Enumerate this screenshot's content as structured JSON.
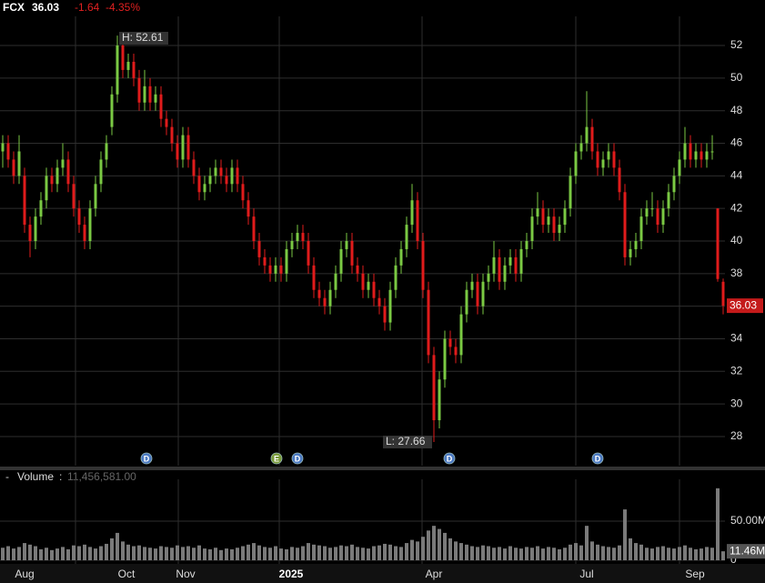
{
  "chart_data": {
    "type": "candlestick",
    "header": {
      "symbol": "FCX",
      "last": "36.03",
      "change": "-1.64",
      "change_pct": "-4.35%"
    },
    "annotations": {
      "high": "H: 52.61",
      "low": "L: 27.66",
      "last_tag": "36.03"
    },
    "events": [
      "D",
      "E",
      "D",
      "D",
      "D"
    ],
    "x_labels": [
      "Aug",
      "Oct",
      "Nov",
      "2025",
      "Apr",
      "Jul",
      "Sep"
    ],
    "up_color": "#7ac943",
    "down_color": "#e01b1b",
    "ylim": [
      26.21,
      53.79
    ],
    "yticks": [
      28,
      30,
      32,
      34,
      36,
      38,
      40,
      42,
      44,
      46,
      48,
      50,
      52
    ],
    "grid": true,
    "candles": [
      [
        45.5,
        46.5,
        44.5,
        46
      ],
      [
        46,
        46.5,
        44.5,
        45
      ],
      [
        45,
        45.5,
        43.5,
        44
      ],
      [
        44,
        46.5,
        43.5,
        45.5
      ],
      [
        44,
        44.5,
        40.5,
        41
      ],
      [
        41,
        41.5,
        39,
        40
      ],
      [
        40,
        42,
        39.5,
        41.5
      ],
      [
        41.5,
        43,
        41,
        42.5
      ],
      [
        42.5,
        44.5,
        42,
        44
      ],
      [
        44,
        44.5,
        43,
        43.5
      ],
      [
        43.5,
        45,
        43,
        44.5
      ],
      [
        44.5,
        46,
        44,
        45
      ],
      [
        45,
        45.5,
        43,
        43.5
      ],
      [
        43.5,
        44,
        41.5,
        42
      ],
      [
        42,
        42.5,
        40.5,
        41
      ],
      [
        41,
        41.5,
        39.5,
        40
      ],
      [
        40,
        42.5,
        39.5,
        42
      ],
      [
        42,
        44,
        41.5,
        43.5
      ],
      [
        43.5,
        45.5,
        43,
        45
      ],
      [
        45,
        46.5,
        44.5,
        46
      ],
      [
        47,
        49.5,
        46.5,
        49
      ],
      [
        49,
        52.61,
        48.5,
        52
      ],
      [
        52,
        52.5,
        50,
        50.5
      ],
      [
        50.5,
        51.5,
        50,
        51
      ],
      [
        51,
        51.5,
        49.5,
        50
      ],
      [
        50,
        50.5,
        48,
        48.5
      ],
      [
        48.5,
        50.5,
        48,
        49.5
      ],
      [
        49.5,
        50,
        48,
        48.5
      ],
      [
        48.5,
        49.5,
        48,
        49
      ],
      [
        49,
        49.5,
        47,
        47.5
      ],
      [
        47.5,
        48,
        46.5,
        47
      ],
      [
        47,
        47.5,
        45.5,
        46
      ],
      [
        46,
        46.5,
        44.5,
        45
      ],
      [
        45,
        47,
        44.5,
        46.5
      ],
      [
        46.5,
        47,
        44.5,
        45
      ],
      [
        45,
        45.5,
        43.5,
        44
      ],
      [
        44,
        44.5,
        42.5,
        43
      ],
      [
        43,
        44,
        42.5,
        43.5
      ],
      [
        43.5,
        44.5,
        43,
        44
      ],
      [
        44,
        45,
        43.5,
        44.5
      ],
      [
        44.5,
        45,
        43.5,
        44
      ],
      [
        44,
        44.5,
        43,
        43.5
      ],
      [
        43.5,
        45,
        43,
        44.5
      ],
      [
        44.5,
        45,
        43,
        43.5
      ],
      [
        43.5,
        44,
        42,
        42.5
      ],
      [
        42.5,
        43,
        41,
        41.5
      ],
      [
        41.5,
        42,
        39.5,
        40
      ],
      [
        40,
        40.5,
        38.5,
        39
      ],
      [
        39,
        39.5,
        38,
        38.5
      ],
      [
        38.5,
        39,
        37.5,
        38
      ],
      [
        38,
        39,
        37.5,
        38.5
      ],
      [
        38.5,
        39,
        37.5,
        38
      ],
      [
        38,
        40,
        37.5,
        39.5
      ],
      [
        39.5,
        40.5,
        39,
        40
      ],
      [
        40,
        41,
        39.5,
        40.5
      ],
      [
        40.5,
        41,
        39.5,
        40
      ],
      [
        40,
        40.5,
        38,
        38.5
      ],
      [
        38.5,
        39,
        36.5,
        37
      ],
      [
        37,
        37.5,
        36,
        36.5
      ],
      [
        36.5,
        37,
        35.5,
        36
      ],
      [
        36,
        37.5,
        35.5,
        37
      ],
      [
        37,
        38.5,
        36.5,
        38
      ],
      [
        38,
        40,
        37.5,
        39.5
      ],
      [
        39.5,
        40.5,
        39,
        40
      ],
      [
        40,
        40.5,
        38,
        38.5
      ],
      [
        38.5,
        39,
        37.5,
        38
      ],
      [
        38,
        38.5,
        36.5,
        37
      ],
      [
        37,
        38,
        36.5,
        37.5
      ],
      [
        37.5,
        38,
        36,
        36.5
      ],
      [
        36.5,
        37,
        35.5,
        36
      ],
      [
        36,
        36.5,
        34.5,
        35
      ],
      [
        35,
        37.5,
        34.5,
        37
      ],
      [
        37,
        39,
        36.5,
        38.5
      ],
      [
        38.5,
        40,
        38,
        39.5
      ],
      [
        39.5,
        41.5,
        39,
        41
      ],
      [
        41,
        43.5,
        40.5,
        42.5
      ],
      [
        42.5,
        43,
        39.5,
        40
      ],
      [
        40,
        40.5,
        36.5,
        37
      ],
      [
        37,
        37.5,
        32.5,
        33
      ],
      [
        33,
        33.5,
        27.66,
        29
      ],
      [
        29,
        32,
        28.5,
        31.5
      ],
      [
        31.5,
        34.5,
        31,
        34
      ],
      [
        34,
        34.5,
        33,
        33.5
      ],
      [
        33.5,
        34,
        32.5,
        33
      ],
      [
        33,
        36,
        32.5,
        35.5
      ],
      [
        35.5,
        37.5,
        35,
        37
      ],
      [
        37,
        38,
        36.5,
        37.5
      ],
      [
        37.5,
        38,
        35.5,
        36
      ],
      [
        36,
        38,
        35.5,
        37.5
      ],
      [
        37.5,
        38.5,
        37,
        38
      ],
      [
        38,
        40,
        37.5,
        39
      ],
      [
        39,
        39.5,
        37,
        37.5
      ],
      [
        37.5,
        39,
        37,
        38.5
      ],
      [
        38.5,
        39.5,
        38,
        39
      ],
      [
        39,
        39.5,
        37.5,
        38
      ],
      [
        38,
        40,
        37.5,
        39.5
      ],
      [
        39.5,
        40.5,
        39,
        40
      ],
      [
        40,
        42,
        39.5,
        41.5
      ],
      [
        41.5,
        43,
        41,
        42
      ],
      [
        42,
        42.5,
        40.5,
        41
      ],
      [
        41,
        42,
        40.5,
        41.5
      ],
      [
        41.5,
        42,
        40,
        40.5
      ],
      [
        40.5,
        41.5,
        40,
        41
      ],
      [
        41,
        42.5,
        40.5,
        42
      ],
      [
        42,
        44.5,
        41.5,
        44
      ],
      [
        44,
        46,
        43.5,
        45.5
      ],
      [
        45.5,
        46.5,
        45,
        46
      ],
      [
        46,
        49.2,
        45.5,
        47
      ],
      [
        47,
        47.5,
        45,
        45.5
      ],
      [
        45.5,
        46,
        44,
        44.5
      ],
      [
        44.5,
        45.5,
        44,
        45
      ],
      [
        45,
        46,
        44.5,
        45.5
      ],
      [
        45.5,
        46,
        44,
        44.5
      ],
      [
        44.5,
        45,
        42.5,
        43
      ],
      [
        43,
        43.5,
        38.5,
        39
      ],
      [
        39,
        40,
        38.5,
        39.5
      ],
      [
        39.5,
        40.5,
        39,
        40
      ],
      [
        40,
        42,
        39.5,
        41.5
      ],
      [
        41.5,
        42.5,
        41,
        42
      ],
      [
        42,
        43,
        41.5,
        42
      ],
      [
        42,
        42.5,
        40.5,
        41
      ],
      [
        41,
        42.5,
        40.5,
        42
      ],
      [
        42,
        43.5,
        41.5,
        43
      ],
      [
        43,
        44.5,
        42.5,
        44
      ],
      [
        44,
        45.5,
        43.5,
        45
      ],
      [
        45,
        47,
        44.5,
        46
      ],
      [
        46,
        46.5,
        44.5,
        45
      ],
      [
        45,
        46,
        44.5,
        45.5
      ],
      [
        45.5,
        46,
        44.5,
        45
      ],
      [
        45,
        46,
        44.5,
        45.5
      ],
      [
        45.5,
        46.5,
        45,
        45.5
      ],
      [
        42,
        42,
        37.5,
        37.67
      ],
      [
        37.5,
        37.7,
        35.5,
        36.03
      ]
    ],
    "volume_title": "Volume",
    "volume_last_text": "11,456,581.00",
    "volume_last_label": "11.46M",
    "volume_color": "#7a7a7a",
    "volume_ylim": [
      0,
      96.5
    ],
    "volume_yticks": [
      {
        "value": 50,
        "label": "50.00M"
      },
      0
    ],
    "volume": [
      16,
      18,
      15,
      17,
      22,
      20,
      18,
      14,
      16,
      13,
      15,
      17,
      14,
      19,
      18,
      20,
      17,
      15,
      18,
      21,
      28,
      35,
      24,
      20,
      18,
      19,
      17,
      16,
      15,
      18,
      17,
      16,
      19,
      17,
      18,
      16,
      19,
      15,
      14,
      16,
      13,
      15,
      14,
      16,
      18,
      20,
      22,
      19,
      17,
      16,
      18,
      15,
      14,
      17,
      16,
      18,
      22,
      20,
      19,
      18,
      16,
      17,
      19,
      18,
      20,
      17,
      16,
      15,
      18,
      19,
      21,
      20,
      18,
      17,
      22,
      26,
      24,
      30,
      38,
      44,
      40,
      35,
      28,
      24,
      22,
      20,
      18,
      17,
      19,
      18,
      16,
      17,
      15,
      18,
      16,
      15,
      17,
      16,
      18,
      15,
      17,
      16,
      14,
      16,
      20,
      22,
      19,
      44,
      24,
      20,
      18,
      17,
      16,
      19,
      65,
      28,
      22,
      20,
      16,
      15,
      17,
      18,
      16,
      15,
      17,
      19,
      16,
      14,
      15,
      17,
      16,
      92,
      11.46
    ]
  }
}
